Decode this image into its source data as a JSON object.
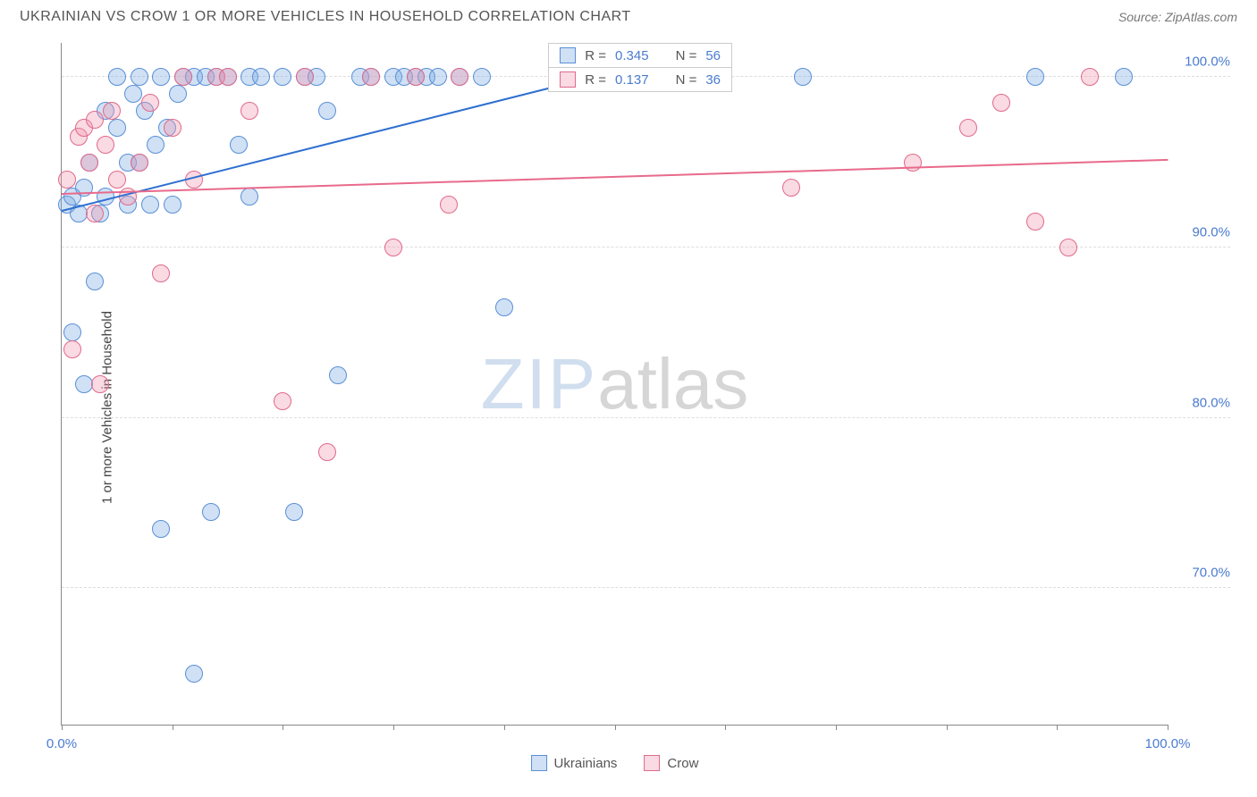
{
  "header": {
    "title": "UKRAINIAN VS CROW 1 OR MORE VEHICLES IN HOUSEHOLD CORRELATION CHART",
    "source": "Source: ZipAtlas.com"
  },
  "ylabel": "1 or more Vehicles in Household",
  "watermark": {
    "zip": "ZIP",
    "atlas": "atlas"
  },
  "chart": {
    "type": "scatter",
    "xlim": [
      0,
      100
    ],
    "ylim": [
      62,
      102
    ],
    "ytick_labels": [
      "70.0%",
      "80.0%",
      "90.0%",
      "100.0%"
    ],
    "ytick_values": [
      70,
      80,
      90,
      100
    ],
    "xtick_positions": [
      0,
      10,
      20,
      30,
      40,
      50,
      60,
      70,
      80,
      90,
      100
    ],
    "xtick_labels": {
      "0": "0.0%",
      "100": "100.0%"
    },
    "grid_color": "#dddddd",
    "axis_color": "#888888",
    "background_color": "#ffffff",
    "marker_radius": 10,
    "marker_stroke_width": 1.5,
    "series": [
      {
        "name": "Ukrainians",
        "fill": "rgba(120,170,225,0.35)",
        "stroke": "#5a8fd6",
        "R": "0.345",
        "N": "56",
        "trend": {
          "x1": 0,
          "y1": 92.2,
          "x2": 60,
          "y2": 102,
          "color": "#2e6fd0",
          "width": 2
        },
        "points": [
          [
            0.5,
            92.5
          ],
          [
            1,
            93
          ],
          [
            1,
            85
          ],
          [
            1.5,
            92
          ],
          [
            2,
            93.5
          ],
          [
            2,
            82
          ],
          [
            2.5,
            95
          ],
          [
            3,
            88
          ],
          [
            3.5,
            92
          ],
          [
            4,
            93
          ],
          [
            4,
            98
          ],
          [
            5,
            97
          ],
          [
            5,
            100
          ],
          [
            6,
            95
          ],
          [
            6,
            92.5
          ],
          [
            6.5,
            99
          ],
          [
            7,
            100
          ],
          [
            7,
            95
          ],
          [
            7.5,
            98
          ],
          [
            8,
            92.5
          ],
          [
            8.5,
            96
          ],
          [
            9,
            100
          ],
          [
            9,
            73.5
          ],
          [
            9.5,
            97
          ],
          [
            10,
            92.5
          ],
          [
            10.5,
            99
          ],
          [
            11,
            100
          ],
          [
            12,
            100
          ],
          [
            12,
            65
          ],
          [
            13,
            100
          ],
          [
            13.5,
            74.5
          ],
          [
            14,
            100
          ],
          [
            15,
            100
          ],
          [
            16,
            96
          ],
          [
            17,
            93
          ],
          [
            17,
            100
          ],
          [
            18,
            100
          ],
          [
            20,
            100
          ],
          [
            21,
            74.5
          ],
          [
            22,
            100
          ],
          [
            23,
            100
          ],
          [
            24,
            98
          ],
          [
            25,
            82.5
          ],
          [
            27,
            100
          ],
          [
            28,
            100
          ],
          [
            30,
            100
          ],
          [
            31,
            100
          ],
          [
            32,
            100
          ],
          [
            33,
            100
          ],
          [
            34,
            100
          ],
          [
            36,
            100
          ],
          [
            38,
            100
          ],
          [
            40,
            86.5
          ],
          [
            67,
            100
          ],
          [
            88,
            100
          ],
          [
            96,
            100
          ]
        ]
      },
      {
        "name": "Crow",
        "fill": "rgba(240,150,175,0.35)",
        "stroke": "#e06a8a",
        "R": "0.137",
        "N": "36",
        "trend": {
          "x1": 0,
          "y1": 93.2,
          "x2": 100,
          "y2": 95.2,
          "color": "#e86a8c",
          "width": 2
        },
        "points": [
          [
            0.5,
            94
          ],
          [
            1,
            84
          ],
          [
            1.5,
            96.5
          ],
          [
            2,
            97
          ],
          [
            2.5,
            95
          ],
          [
            3,
            97.5
          ],
          [
            3,
            92
          ],
          [
            3.5,
            82
          ],
          [
            4,
            96
          ],
          [
            4.5,
            98
          ],
          [
            5,
            94
          ],
          [
            6,
            93
          ],
          [
            7,
            95
          ],
          [
            8,
            98.5
          ],
          [
            9,
            88.5
          ],
          [
            10,
            97
          ],
          [
            11,
            100
          ],
          [
            12,
            94
          ],
          [
            14,
            100
          ],
          [
            15,
            100
          ],
          [
            17,
            98
          ],
          [
            20,
            81
          ],
          [
            22,
            100
          ],
          [
            24,
            78
          ],
          [
            28,
            100
          ],
          [
            30,
            90
          ],
          [
            32,
            100
          ],
          [
            35,
            92.5
          ],
          [
            36,
            100
          ],
          [
            66,
            93.5
          ],
          [
            77,
            95
          ],
          [
            82,
            97
          ],
          [
            85,
            98.5
          ],
          [
            88,
            91.5
          ],
          [
            91,
            90
          ],
          [
            93,
            100
          ]
        ]
      }
    ]
  },
  "legend_top": {
    "rows": [
      {
        "swatch_fill": "rgba(120,170,225,0.35)",
        "swatch_stroke": "#5a8fd6",
        "r_label": "R =",
        "r_val": "0.345",
        "n_label": "N =",
        "n_val": "56"
      },
      {
        "swatch_fill": "rgba(240,150,175,0.35)",
        "swatch_stroke": "#e06a8a",
        "r_label": "R =",
        "r_val": "0.137",
        "n_label": "N =",
        "n_val": "36"
      }
    ]
  },
  "legend_bottom": {
    "items": [
      {
        "swatch_fill": "rgba(120,170,225,0.35)",
        "swatch_stroke": "#5a8fd6",
        "label": "Ukrainians"
      },
      {
        "swatch_fill": "rgba(240,150,175,0.35)",
        "swatch_stroke": "#e06a8a",
        "label": "Crow"
      }
    ]
  }
}
